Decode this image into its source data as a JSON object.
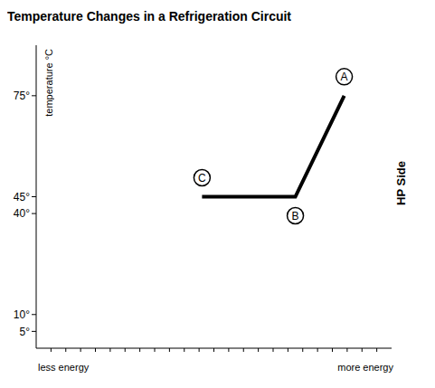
{
  "chart_data": {
    "type": "line",
    "title": "Temperature Changes in a Refrigeration Circuit",
    "y_label": "temperature °C",
    "x_axis_labels": [
      "less energy",
      "more energy"
    ],
    "side_label": "HP Side",
    "x": [
      11.2,
      17.5,
      20.8
    ],
    "values": [
      45,
      45,
      75
    ],
    "point_labels": [
      "C",
      "B",
      "A"
    ],
    "color": "#000000",
    "xlim": [
      0,
      24
    ],
    "xticks": [
      1,
      2,
      3,
      4,
      5,
      6,
      7,
      8,
      9,
      10,
      11,
      12,
      13,
      14,
      15,
      16,
      17,
      18,
      19,
      20,
      21,
      22,
      23
    ],
    "ylim": [
      0,
      90
    ],
    "yticks": [
      {
        "value": 5,
        "label": "5°"
      },
      {
        "value": 10,
        "label": "10°"
      },
      {
        "value": 40,
        "label": "40°"
      },
      {
        "value": 45,
        "label": "45°"
      },
      {
        "value": 75,
        "label": "75°"
      }
    ],
    "tick_labels": "y",
    "grid": false
  }
}
